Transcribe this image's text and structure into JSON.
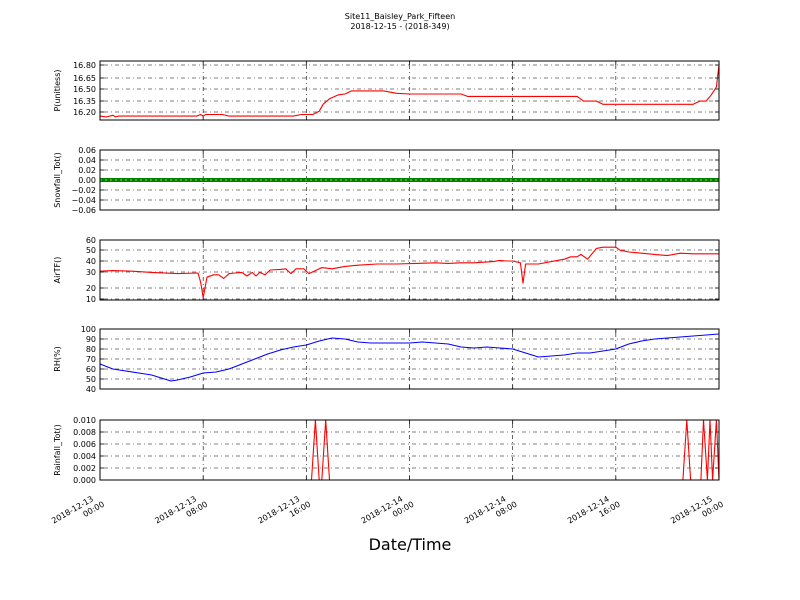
{
  "chart_data": {
    "title": "Site11_Baisley_Park_Fifteen",
    "subtitle": "2018-12-15 - (2018-349)",
    "xlabel": "Date/Time",
    "x_ticks": [
      [
        "2018-12-13",
        "00:00"
      ],
      [
        "2018-12-13",
        "08:00"
      ],
      [
        "2018-12-13",
        "16:00"
      ],
      [
        "2018-12-14",
        "00:00"
      ],
      [
        "2018-12-14",
        "08:00"
      ],
      [
        "2018-12-14",
        "16:00"
      ],
      [
        "2018-12-15",
        "00:00"
      ]
    ],
    "x_range_hours": [
      0,
      48
    ],
    "grid": true,
    "panels": [
      {
        "id": "pressure",
        "type": "line",
        "ylabel": "P(unitless)",
        "color": "#ff0000",
        "ylim": [
          16.13,
          16.88
        ],
        "yticks": [
          "16.80",
          "16.65",
          "16.50",
          "16.35",
          "16.20"
        ],
        "ytick_values": [
          16.8,
          16.65,
          16.5,
          16.35,
          16.2
        ],
        "x": [
          0,
          0.5,
          1,
          1.2,
          1.4,
          3,
          6,
          7.5,
          7.8,
          8,
          8.2,
          9.5,
          10,
          15,
          15.6,
          16.5,
          17,
          17.3,
          17.8,
          18.5,
          19,
          19.5,
          20.3,
          22,
          23,
          24,
          27,
          28,
          28.5,
          29,
          33,
          37,
          37.5,
          38.5,
          39,
          43,
          46,
          46.5,
          47,
          47.4,
          47.8,
          48
        ],
        "values": [
          16.18,
          16.17,
          16.19,
          16.17,
          16.18,
          16.18,
          16.18,
          16.18,
          16.2,
          16.18,
          16.2,
          16.2,
          16.18,
          16.18,
          16.2,
          16.2,
          16.24,
          16.33,
          16.4,
          16.45,
          16.46,
          16.5,
          16.5,
          16.5,
          16.47,
          16.46,
          16.46,
          16.46,
          16.43,
          16.43,
          16.43,
          16.43,
          16.37,
          16.37,
          16.33,
          16.33,
          16.33,
          16.37,
          16.37,
          16.45,
          16.55,
          16.83
        ]
      },
      {
        "id": "snowfall",
        "type": "line",
        "ylabel": "Snowfall_Tot()",
        "color": "#008000",
        "ylim": [
          -0.06,
          0.06
        ],
        "yticks": [
          "0.06",
          "0.04",
          "0.02",
          "0.00",
          "−0.02",
          "−0.04",
          "−0.06"
        ],
        "ytick_values": [
          0.06,
          0.04,
          0.02,
          0,
          -0.02,
          -0.04,
          -0.06
        ],
        "x": [
          0,
          48
        ],
        "values": [
          0,
          0
        ]
      },
      {
        "id": "airtemp",
        "type": "line",
        "ylabel": "AirTF()",
        "color": "#ff0000",
        "ylim": [
          10,
          60
        ],
        "yticks": [
          "60",
          "50",
          "40",
          "30",
          "20",
          "10"
        ],
        "ytick_values": [
          60,
          50,
          40,
          30,
          20,
          10
        ],
        "x": [
          0,
          1,
          2.5,
          4,
          6,
          7.6,
          7.8,
          8,
          8.3,
          8.8,
          9.2,
          9.6,
          10,
          10.5,
          11,
          11.4,
          11.8,
          12.1,
          12.4,
          12.8,
          13.2,
          14,
          14.4,
          14.8,
          15.2,
          15.8,
          16.2,
          17.2,
          18,
          19,
          20,
          21.5,
          23,
          24.5,
          26,
          27,
          28,
          29,
          30.5,
          31,
          31.5,
          32,
          32.6,
          32.8,
          33,
          34,
          35,
          36,
          36.5,
          37,
          37.3,
          37.8,
          38.5,
          39,
          40,
          40.4,
          40.6,
          41,
          42,
          43,
          44,
          45,
          46,
          48
        ],
        "values": [
          34,
          34.5,
          34,
          33,
          32,
          32.5,
          25,
          12,
          29,
          31,
          31,
          28,
          32,
          32.5,
          33,
          30,
          33,
          30,
          33,
          31,
          35,
          35.5,
          36,
          32,
          36,
          36,
          32,
          37,
          36,
          38,
          39,
          40,
          40,
          40.5,
          41,
          40.5,
          41,
          41,
          42,
          43,
          42.5,
          42.5,
          41,
          24,
          40,
          40,
          42,
          44,
          46,
          46,
          48,
          44,
          53,
          54,
          54,
          51,
          51,
          50,
          49,
          48,
          47,
          49,
          48.5,
          48.5
        ]
      },
      {
        "id": "rh",
        "type": "line",
        "ylabel": "RH(%)",
        "color": "#0000ff",
        "ylim": [
          40,
          100
        ],
        "yticks": [
          "100",
          "90",
          "80",
          "70",
          "60",
          "50",
          "40"
        ],
        "ytick_values": [
          100,
          90,
          80,
          70,
          60,
          50,
          40
        ],
        "x": [
          0,
          1,
          2,
          3,
          4,
          5,
          5.5,
          6,
          7,
          8,
          9,
          10,
          11,
          12,
          13,
          14,
          15,
          16,
          17,
          18,
          19,
          20,
          21,
          22,
          23,
          24,
          25,
          26,
          27,
          28,
          29,
          30,
          31,
          32,
          33,
          34,
          35,
          36,
          37,
          38,
          39,
          40,
          41,
          42,
          43,
          44,
          45,
          46,
          47,
          48
        ],
        "values": [
          65,
          60,
          58,
          56,
          54,
          50,
          48,
          49,
          52,
          56,
          57,
          60,
          65,
          70,
          75,
          79,
          82,
          84,
          88,
          91,
          90,
          87,
          86,
          86,
          86,
          86,
          87,
          86,
          85,
          82,
          81,
          82,
          81,
          80,
          76,
          72,
          73,
          74,
          76,
          76,
          78,
          80,
          85,
          88,
          90,
          91,
          92,
          93,
          94,
          95
        ]
      },
      {
        "id": "rainfall",
        "type": "line",
        "ylabel": "Rainfall_Tot()",
        "color": "#ff0000",
        "ylim": [
          0,
          0.01
        ],
        "yticks": [
          "0.010",
          "0.008",
          "0.006",
          "0.004",
          "0.002",
          "0.000"
        ],
        "ytick_values": [
          0.01,
          0.008,
          0.006,
          0.004,
          0.002,
          0
        ],
        "x": [
          0,
          16.4,
          16.7,
          17,
          17.2,
          17.5,
          17.8,
          45.2,
          45.5,
          45.8,
          46.6,
          46.8,
          47.1,
          47.3,
          47.5,
          47.8,
          48
        ],
        "values": [
          0,
          0,
          0.01,
          0,
          0,
          0.01,
          0,
          0,
          0.01,
          0,
          0,
          0.01,
          0,
          0.01,
          0,
          0.01,
          0
        ]
      }
    ]
  }
}
